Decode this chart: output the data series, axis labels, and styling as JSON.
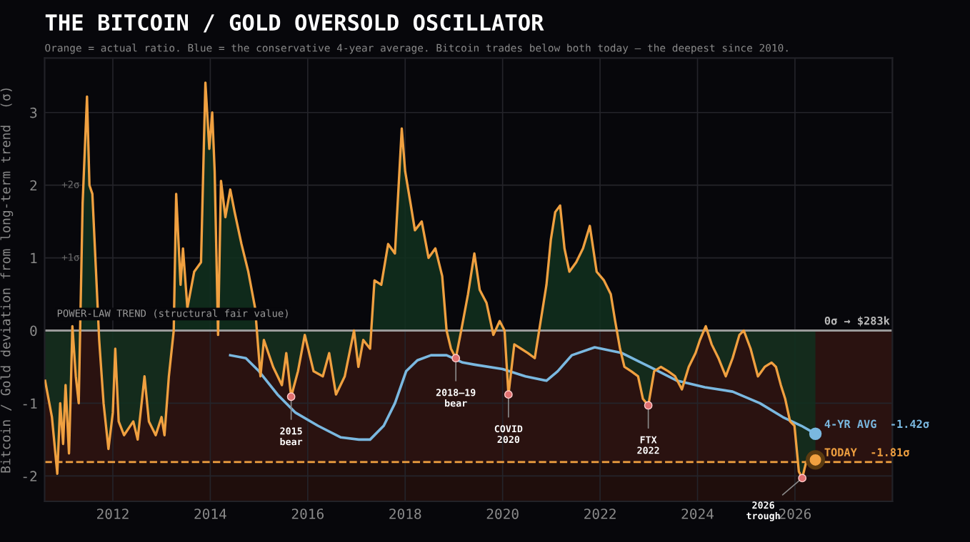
{
  "chart_data": {
    "type": "area",
    "title": "THE BITCOIN / GOLD OVERSOLD OSCILLATOR",
    "subtitle": "Orange = actual ratio. Blue = the conservative 4-year average. Bitcoin trades below both today — the deepest since 2010.",
    "ylabel": "Bitcoin / Gold deviation from long-term trend  (σ)",
    "xlim": [
      2010.6,
      2028.0
    ],
    "ylim": [
      -2.35,
      3.75
    ],
    "xticks": [
      2012,
      2014,
      2016,
      2018,
      2020,
      2022,
      2024,
      2026
    ],
    "yticks": [
      -2,
      -1,
      0,
      1,
      2,
      3
    ],
    "grid": true,
    "legend": false,
    "series": [
      {
        "color": "#f0a040",
        "x": [
          2010.61,
          2010.75,
          2010.86,
          2010.92,
          2010.98,
          2011.03,
          2011.1,
          2011.13,
          2011.17,
          2011.24,
          2011.3,
          2011.38,
          2011.47,
          2011.52,
          2011.58,
          2011.65,
          2011.72,
          2011.81,
          2011.91,
          2012.0,
          2012.05,
          2012.12,
          2012.23,
          2012.42,
          2012.51,
          2012.65,
          2012.74,
          2012.88,
          2013.0,
          2013.06,
          2013.15,
          2013.25,
          2013.3,
          2013.39,
          2013.44,
          2013.53,
          2013.67,
          2013.81,
          2013.9,
          2013.98,
          2014.04,
          2014.09,
          2014.16,
          2014.22,
          2014.31,
          2014.41,
          2014.5,
          2014.64,
          2014.78,
          2014.92,
          2015.03,
          2015.1,
          2015.29,
          2015.47,
          2015.56,
          2015.66,
          2015.8,
          2015.94,
          2016.12,
          2016.31,
          2016.44,
          2016.58,
          2016.76,
          2016.95,
          2017.04,
          2017.14,
          2017.28,
          2017.37,
          2017.51,
          2017.65,
          2017.79,
          2017.93,
          2018.0,
          2018.11,
          2018.2,
          2018.34,
          2018.48,
          2018.62,
          2018.76,
          2018.85,
          2018.94,
          2019.04,
          2019.15,
          2019.29,
          2019.42,
          2019.53,
          2019.67,
          2019.81,
          2019.94,
          2020.04,
          2020.12,
          2020.24,
          2020.38,
          2020.52,
          2020.66,
          2020.75,
          2020.9,
          2020.99,
          2021.08,
          2021.18,
          2021.27,
          2021.37,
          2021.51,
          2021.65,
          2021.79,
          2021.93,
          2022.08,
          2022.22,
          2022.31,
          2022.41,
          2022.5,
          2022.64,
          2022.78,
          2022.88,
          2022.99,
          2023.11,
          2023.25,
          2023.4,
          2023.54,
          2023.68,
          2023.82,
          2023.96,
          2024.05,
          2024.17,
          2024.29,
          2024.43,
          2024.58,
          2024.72,
          2024.86,
          2024.95,
          2025.09,
          2025.24,
          2025.38,
          2025.52,
          2025.61,
          2025.71,
          2025.8,
          2025.9,
          2025.99,
          2026.08,
          2026.15,
          2026.23,
          2026.32,
          2026.42
        ],
        "values": [
          -0.69,
          -1.19,
          -1.97,
          -1.0,
          -1.56,
          -0.75,
          -1.69,
          -1.0,
          0.06,
          -0.63,
          -1.0,
          1.75,
          3.22,
          2.0,
          1.88,
          0.88,
          -0.13,
          -1.0,
          -1.63,
          -1.13,
          -0.25,
          -1.25,
          -1.44,
          -1.25,
          -1.5,
          -0.63,
          -1.25,
          -1.44,
          -1.19,
          -1.44,
          -0.63,
          0.0,
          1.88,
          0.63,
          1.13,
          0.31,
          0.81,
          0.94,
          3.41,
          2.5,
          3.0,
          2.19,
          -0.06,
          2.06,
          1.56,
          1.94,
          1.63,
          1.19,
          0.81,
          0.31,
          -0.63,
          -0.13,
          -0.5,
          -0.75,
          -0.31,
          -0.91,
          -0.56,
          -0.06,
          -0.56,
          -0.63,
          -0.31,
          -0.88,
          -0.63,
          0.0,
          -0.5,
          -0.13,
          -0.25,
          0.69,
          0.63,
          1.19,
          1.06,
          2.78,
          2.19,
          1.75,
          1.38,
          1.5,
          1.0,
          1.13,
          0.75,
          0.0,
          -0.25,
          -0.38,
          0.0,
          0.5,
          1.06,
          0.56,
          0.38,
          -0.06,
          0.13,
          0.0,
          -0.88,
          -0.19,
          -0.25,
          -0.31,
          -0.38,
          0.0,
          0.63,
          1.25,
          1.63,
          1.72,
          1.13,
          0.81,
          0.94,
          1.13,
          1.44,
          0.81,
          0.69,
          0.5,
          0.13,
          -0.25,
          -0.5,
          -0.56,
          -0.63,
          -0.94,
          -1.03,
          -0.56,
          -0.5,
          -0.56,
          -0.63,
          -0.81,
          -0.5,
          -0.31,
          -0.13,
          0.06,
          -0.19,
          -0.38,
          -0.63,
          -0.38,
          -0.06,
          0.0,
          -0.25,
          -0.63,
          -0.5,
          -0.44,
          -0.5,
          -0.75,
          -0.94,
          -1.25,
          -1.31,
          -1.94,
          -2.03,
          -1.81,
          -1.69,
          -1.78
        ]
      },
      {
        "type": "line",
        "color": "#7ab8e0",
        "x": [
          2014.41,
          2014.73,
          2015.0,
          2015.38,
          2015.75,
          2016.21,
          2016.68,
          2017.05,
          2017.28,
          2017.56,
          2017.79,
          2018.02,
          2018.25,
          2018.53,
          2018.85,
          2019.18,
          2019.43,
          2020.0,
          2020.47,
          2020.9,
          2021.13,
          2021.42,
          2021.89,
          2022.45,
          2023.02,
          2023.58,
          2024.15,
          2024.72,
          2025.28,
          2025.75,
          2026.13,
          2026.42
        ],
        "values": [
          -0.34,
          -0.38,
          -0.56,
          -0.88,
          -1.13,
          -1.31,
          -1.47,
          -1.5,
          -1.5,
          -1.31,
          -1.0,
          -0.56,
          -0.41,
          -0.34,
          -0.34,
          -0.44,
          -0.47,
          -0.53,
          -0.63,
          -0.69,
          -0.56,
          -0.34,
          -0.23,
          -0.31,
          -0.5,
          -0.69,
          -0.78,
          -0.84,
          -1.0,
          -1.19,
          -1.31,
          -1.42
        ]
      },
      {
        "type": "scatter",
        "color": "#e07070",
        "x": [
          2015.66,
          2019.04,
          2020.12,
          2022.99,
          2026.15
        ],
        "values": [
          -0.91,
          -0.38,
          -0.88,
          -1.03,
          -2.03
        ]
      }
    ],
    "ref_lines": [
      {
        "axis": "y",
        "value": 0,
        "label": "POWER-LAW TREND (structural fair value)",
        "color": "#9a9a9a"
      },
      {
        "axis": "y",
        "value": -1.81,
        "color": "#f0a040",
        "line_style": "dashed"
      }
    ],
    "bands": [
      {
        "axis": "y",
        "from": -1.81,
        "to": 0,
        "color": "#2a1210"
      },
      {
        "axis": "y",
        "from": -2.35,
        "to": -1.81,
        "color": "#1f0e0c"
      }
    ],
    "annotations": [
      {
        "text": "2015\nbear",
        "x": 2015.66,
        "y": -0.91
      },
      {
        "text": "2018–19\nbear",
        "x": 2019.04,
        "y": -0.38
      },
      {
        "text": "COVID\n2020",
        "x": 2020.12,
        "y": -0.88
      },
      {
        "text": "FTX\n2022",
        "x": 2022.99,
        "y": -1.03
      },
      {
        "text": "2026\ntrough",
        "x": 2026.15,
        "y": -2.03
      },
      {
        "text": "0σ → $283k",
        "x": 2026.6,
        "y": 0
      },
      {
        "text": "4-YR AVG  -1.42σ",
        "x": 2026.6,
        "y": -1.42
      },
      {
        "text": "TODAY  -1.81σ",
        "x": 2026.6,
        "y": -1.81
      },
      "+2σ",
      "+1σ"
    ]
  }
}
